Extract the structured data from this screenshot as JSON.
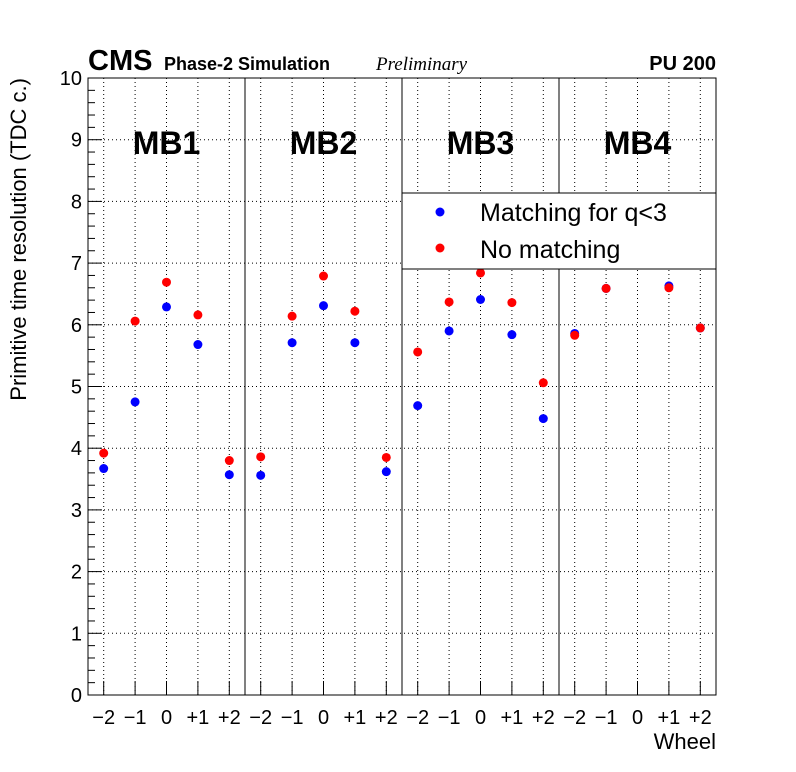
{
  "chart_data": {
    "type": "scatter",
    "header": {
      "experiment": "CMS",
      "subtitle": "Phase-2 Simulation",
      "status": "Preliminary",
      "pileup": "PU 200"
    },
    "title": "",
    "xlabel": "Wheel",
    "ylabel": "Primitive time resolution (TDC c.)",
    "ylim": [
      0,
      10
    ],
    "yticks": [
      0,
      1,
      2,
      3,
      4,
      5,
      6,
      7,
      8,
      9,
      10
    ],
    "xtick_labels": [
      "−2",
      "−1",
      "0",
      "+1",
      "+2"
    ],
    "grid": true,
    "legend": {
      "placement": "top-right"
    },
    "stations": [
      {
        "name": "MB1"
      },
      {
        "name": "MB2"
      },
      {
        "name": "MB3"
      },
      {
        "name": "MB4"
      }
    ],
    "series": [
      {
        "name": "Matching for q<3",
        "color": "#0000ff",
        "values": [
          [
            3.67,
            4.75,
            6.29,
            5.68,
            3.57
          ],
          [
            3.56,
            5.71,
            6.31,
            5.71,
            3.62
          ],
          [
            4.69,
            5.9,
            6.41,
            5.84,
            4.48
          ],
          [
            5.86,
            6.59,
            null,
            6.63,
            5.95
          ]
        ]
      },
      {
        "name": "No matching",
        "color": "#ff0000",
        "values": [
          [
            3.92,
            6.06,
            6.69,
            6.16,
            3.8
          ],
          [
            3.86,
            6.14,
            6.79,
            6.22,
            3.85
          ],
          [
            5.56,
            6.37,
            6.84,
            6.36,
            5.06
          ],
          [
            5.83,
            6.59,
            null,
            6.6,
            5.95
          ]
        ]
      }
    ]
  }
}
